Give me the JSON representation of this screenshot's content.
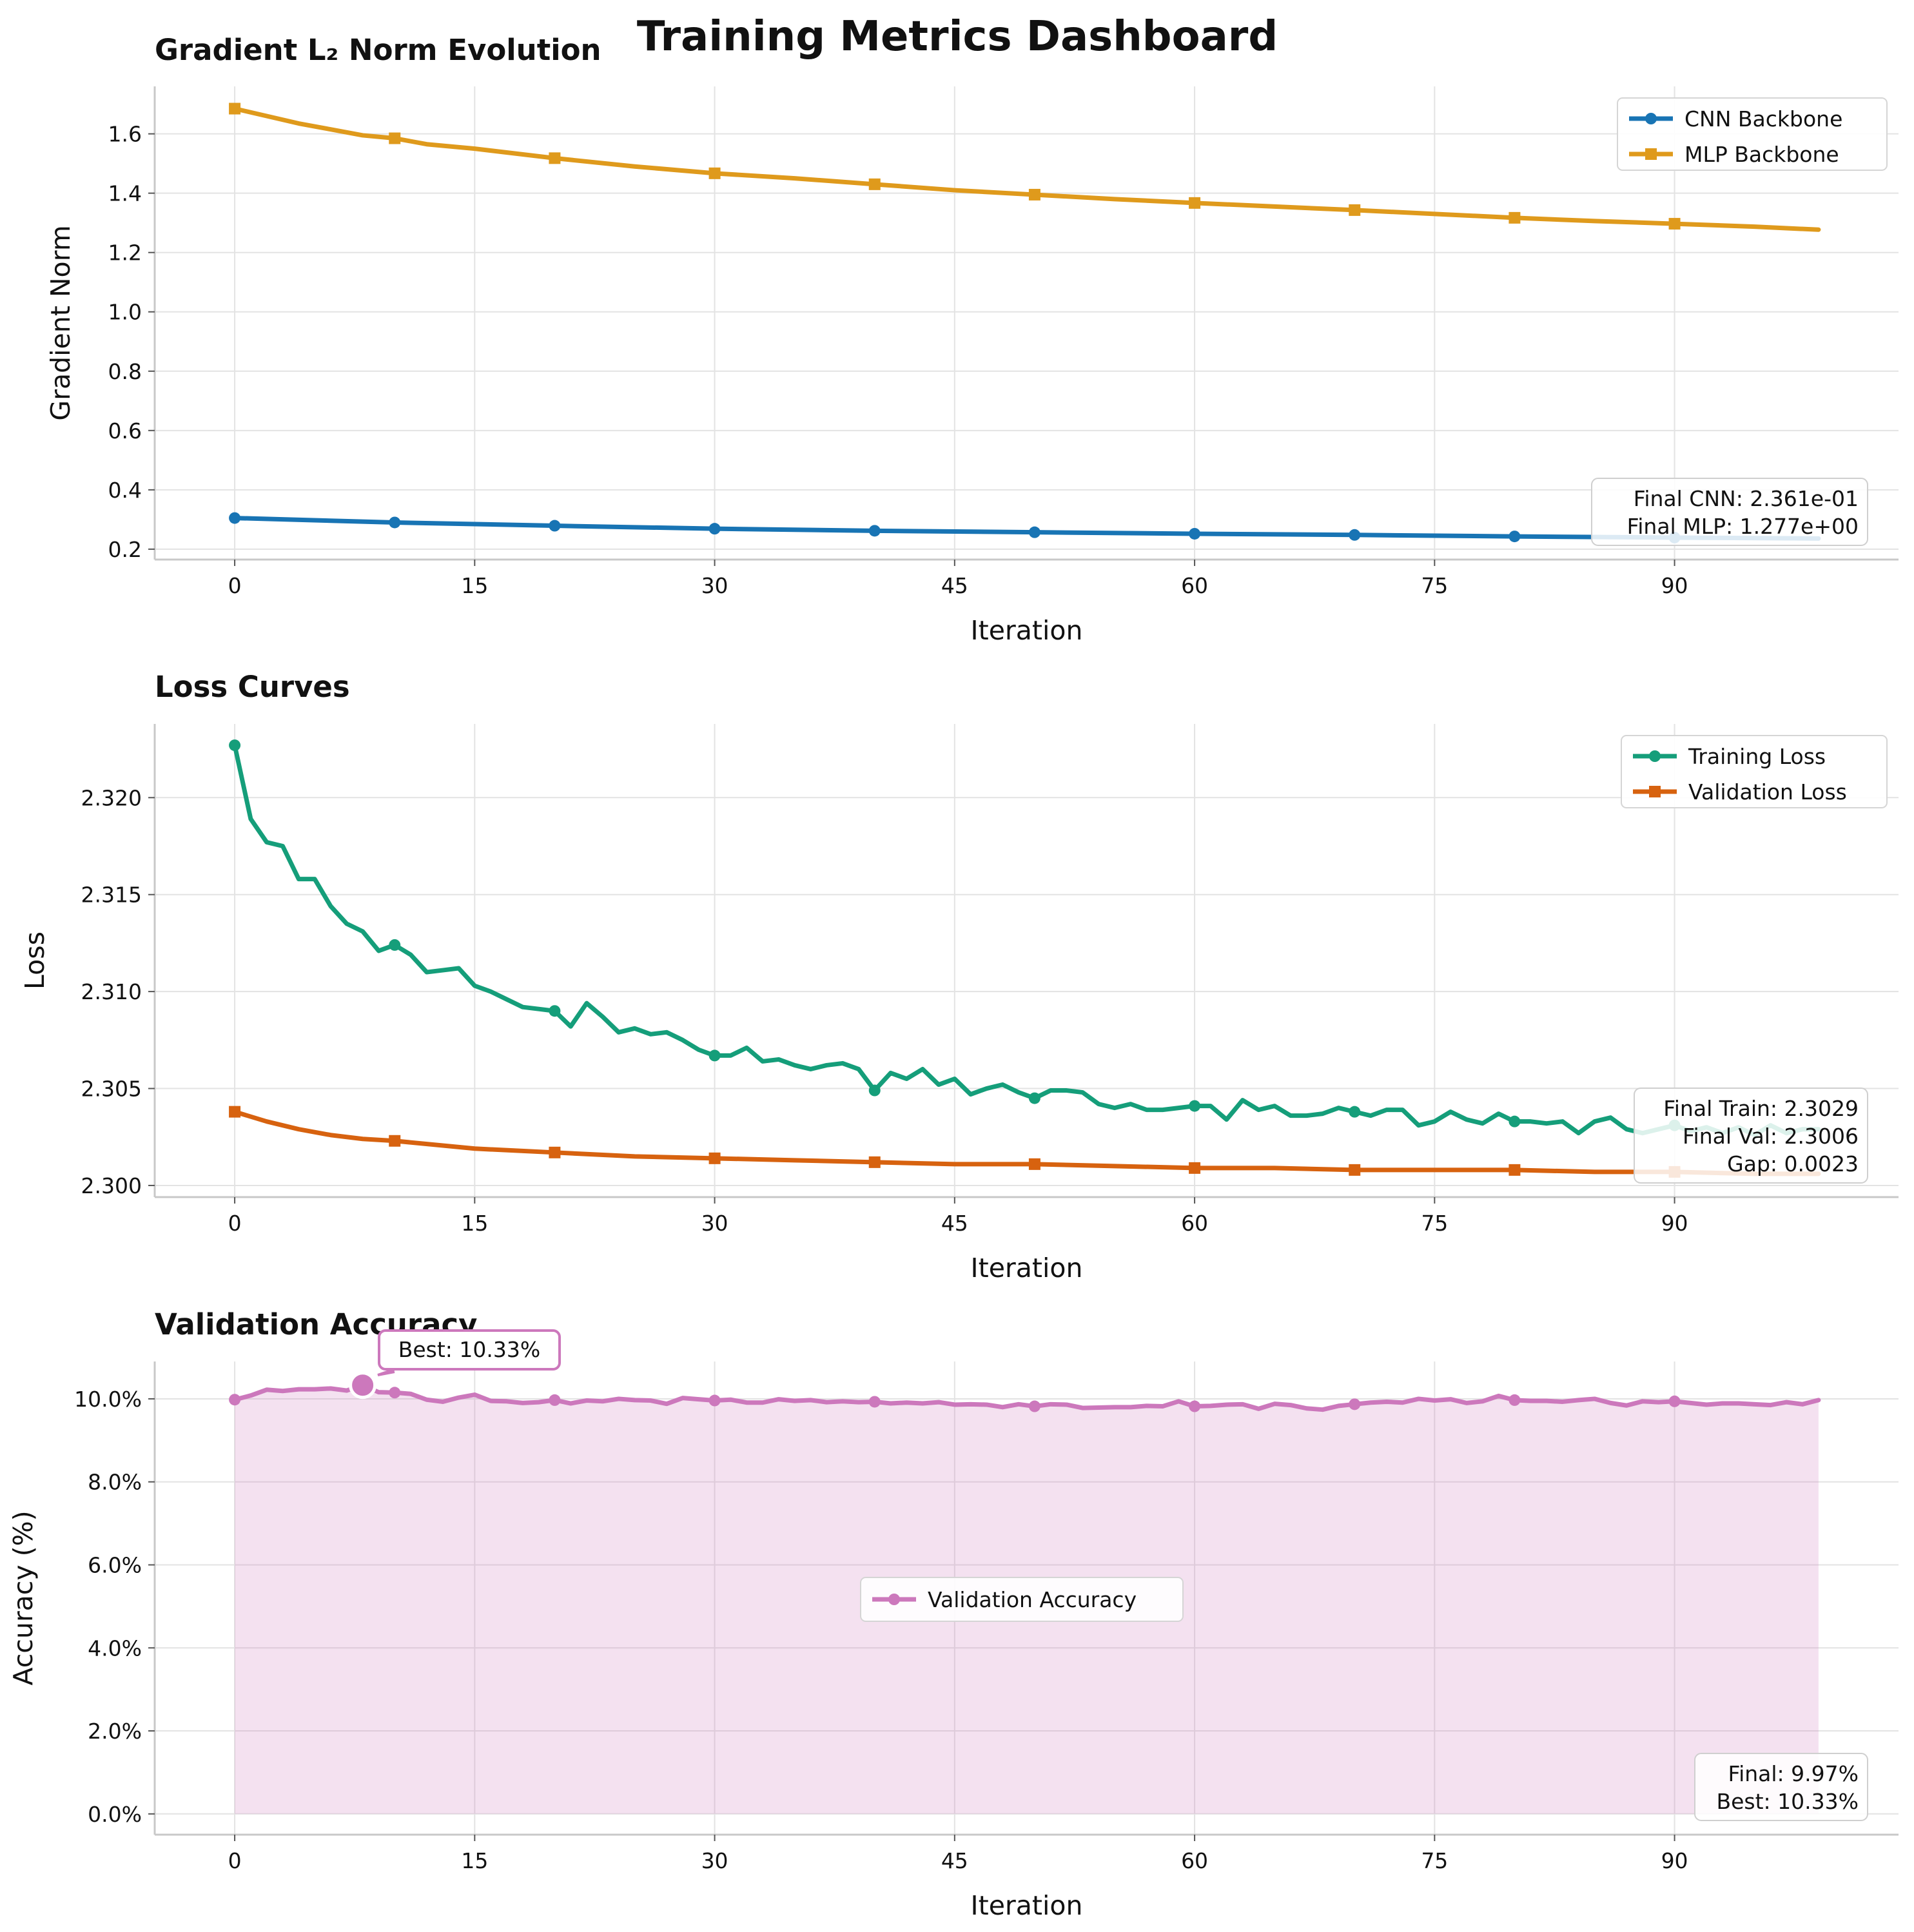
{
  "suptitle": "Training Metrics Dashboard",
  "colors": {
    "cnn": "#1874b4",
    "mlp": "#df9a1c",
    "train": "#159e7a",
    "val": "#d7620f",
    "acc": "#cc78bc",
    "grid": "#e3e3e3",
    "spine": "#c8c8c8",
    "text": "#111111"
  },
  "chart_data": [
    {
      "id": "grad",
      "type": "line",
      "title": "Gradient L₂ Norm Evolution",
      "xlabel": "Iteration",
      "ylabel": "Gradient Norm",
      "xlim": [
        -5,
        104
      ],
      "ylim": [
        0.165,
        1.76
      ],
      "xticks": [
        0,
        15,
        30,
        45,
        60,
        75,
        90
      ],
      "yticks": [
        0.2,
        0.4,
        0.6,
        0.8,
        1.0,
        1.2,
        1.4,
        1.6
      ],
      "ytick_labels": [
        "0.2",
        "0.4",
        "0.6",
        "0.8",
        "1.0",
        "1.2",
        "1.4",
        "1.6"
      ],
      "tick_labels_x": [
        "0",
        "15",
        "30",
        "45",
        "60",
        "75",
        "90"
      ],
      "grid": true,
      "legend": "upper right",
      "series": [
        {
          "name": "CNN Backbone",
          "color_key": "cnn",
          "marker": "circle",
          "x": [
            0,
            10,
            20,
            30,
            40,
            50,
            60,
            70,
            80,
            90,
            99
          ],
          "y": [
            0.305,
            0.29,
            0.279,
            0.269,
            0.262,
            0.257,
            0.252,
            0.248,
            0.243,
            0.239,
            0.236
          ]
        },
        {
          "name": "MLP Backbone",
          "color_key": "mlp",
          "marker": "square",
          "x": [
            0,
            2,
            4,
            6,
            8,
            10,
            12,
            15,
            20,
            25,
            30,
            35,
            40,
            45,
            50,
            55,
            60,
            65,
            70,
            75,
            80,
            85,
            90,
            95,
            99
          ],
          "y": [
            1.685,
            1.66,
            1.635,
            1.615,
            1.595,
            1.585,
            1.565,
            1.55,
            1.518,
            1.49,
            1.467,
            1.45,
            1.43,
            1.41,
            1.395,
            1.38,
            1.367,
            1.355,
            1.343,
            1.33,
            1.317,
            1.306,
            1.297,
            1.287,
            1.277
          ]
        }
      ],
      "marker_x": [
        0,
        10,
        20,
        30,
        40,
        50,
        60,
        70,
        80,
        90
      ],
      "annotation": [
        "Final CNN: 2.361e-01",
        "Final MLP: 1.277e+00"
      ]
    },
    {
      "id": "loss",
      "type": "line",
      "title": "Loss Curves",
      "xlabel": "Iteration",
      "ylabel": "Loss",
      "xlim": [
        -5,
        104
      ],
      "ylim": [
        2.2994,
        2.3238
      ],
      "xticks": [
        0,
        15,
        30,
        45,
        60,
        75,
        90
      ],
      "yticks": [
        2.3,
        2.305,
        2.31,
        2.315,
        2.32
      ],
      "ytick_labels": [
        "2.300",
        "2.305",
        "2.310",
        "2.315",
        "2.320"
      ],
      "tick_labels_x": [
        "0",
        "15",
        "30",
        "45",
        "60",
        "75",
        "90"
      ],
      "grid": true,
      "legend": "upper right",
      "series": [
        {
          "name": "Training Loss",
          "color_key": "train",
          "marker": "circle",
          "x": [
            0,
            1,
            2,
            3,
            4,
            5,
            6,
            7,
            8,
            9,
            10,
            11,
            12,
            13,
            14,
            15,
            16,
            17,
            18,
            19,
            20,
            21,
            22,
            23,
            24,
            25,
            26,
            27,
            28,
            29,
            30,
            31,
            32,
            33,
            34,
            35,
            36,
            37,
            38,
            39,
            40,
            41,
            42,
            43,
            44,
            45,
            46,
            47,
            48,
            49,
            50,
            51,
            52,
            53,
            54,
            55,
            56,
            57,
            58,
            59,
            60,
            61,
            62,
            63,
            64,
            65,
            66,
            67,
            68,
            69,
            70,
            71,
            72,
            73,
            74,
            75,
            76,
            77,
            78,
            79,
            80,
            81,
            82,
            83,
            84,
            85,
            86,
            87,
            88,
            89,
            90,
            91,
            92,
            93,
            94,
            95,
            96,
            97,
            98,
            99
          ],
          "y": [
            2.3227,
            2.3189,
            2.3177,
            2.3175,
            2.3158,
            2.3158,
            2.3144,
            2.3135,
            2.3131,
            2.3121,
            2.3124,
            2.3119,
            2.311,
            2.3111,
            2.3112,
            2.3103,
            2.31,
            2.3096,
            2.3092,
            2.3091,
            2.309,
            2.3082,
            2.3094,
            2.3087,
            2.3079,
            2.3081,
            2.3078,
            2.3079,
            2.3075,
            2.307,
            2.3067,
            2.3067,
            2.3071,
            2.3064,
            2.3065,
            2.3062,
            2.306,
            2.3062,
            2.3063,
            2.306,
            2.3049,
            2.3058,
            2.3055,
            2.306,
            2.3052,
            2.3055,
            2.3047,
            2.305,
            2.3052,
            2.3048,
            2.3045,
            2.3049,
            2.3049,
            2.3048,
            2.3042,
            2.304,
            2.3042,
            2.3039,
            2.3039,
            2.304,
            2.3041,
            2.3041,
            2.3034,
            2.3044,
            2.3039,
            2.3041,
            2.3036,
            2.3036,
            2.3037,
            2.304,
            2.3038,
            2.3036,
            2.3039,
            2.3039,
            2.3031,
            2.3033,
            2.3038,
            2.3034,
            2.3032,
            2.3037,
            2.3033,
            2.3033,
            2.3032,
            2.3033,
            2.3027,
            2.3033,
            2.3035,
            2.3029,
            2.3027,
            2.3029,
            2.3031,
            2.3028,
            2.303,
            2.3027,
            2.303,
            2.3026,
            2.3031,
            2.3027,
            2.3029,
            2.3029
          ]
        },
        {
          "name": "Validation Loss",
          "color_key": "val",
          "marker": "square",
          "x": [
            0,
            2,
            4,
            6,
            8,
            10,
            15,
            20,
            25,
            30,
            35,
            40,
            45,
            50,
            55,
            60,
            65,
            70,
            75,
            80,
            85,
            90,
            95,
            99
          ],
          "y": [
            2.3038,
            2.3033,
            2.3029,
            2.3026,
            2.3024,
            2.3023,
            2.3019,
            2.3017,
            2.3015,
            2.3014,
            2.3013,
            2.3012,
            2.3011,
            2.3011,
            2.301,
            2.3009,
            2.3009,
            2.3008,
            2.3008,
            2.3008,
            2.3007,
            2.3007,
            2.3006,
            2.3006
          ]
        }
      ],
      "marker_x": [
        0,
        10,
        20,
        30,
        40,
        50,
        60,
        70,
        80,
        90
      ],
      "annotation": [
        "Final Train: 2.3029",
        "Final Val: 2.3006",
        "Gap: 0.0023"
      ]
    },
    {
      "id": "acc",
      "type": "area",
      "title": "Validation Accuracy",
      "xlabel": "Iteration",
      "ylabel": "Accuracy (%)",
      "xlim": [
        -5,
        104
      ],
      "ylim": [
        -0.5,
        10.9
      ],
      "xticks": [
        0,
        15,
        30,
        45,
        60,
        75,
        90
      ],
      "yticks": [
        0,
        2,
        4,
        6,
        8,
        10
      ],
      "ytick_labels": [
        "0.0%",
        "2.0%",
        "4.0%",
        "6.0%",
        "8.0%",
        "10.0%"
      ],
      "tick_labels_x": [
        "0",
        "15",
        "30",
        "45",
        "60",
        "75",
        "90"
      ],
      "grid": true,
      "legend": "center",
      "series": [
        {
          "name": "Validation Accuracy",
          "color_key": "acc",
          "marker": "circle",
          "x": [
            0,
            1,
            2,
            3,
            4,
            5,
            6,
            7,
            8,
            9,
            10,
            11,
            12,
            13,
            14,
            15,
            16,
            17,
            18,
            19,
            20,
            21,
            22,
            23,
            24,
            25,
            26,
            27,
            28,
            29,
            30,
            31,
            32,
            33,
            34,
            35,
            36,
            37,
            38,
            39,
            40,
            41,
            42,
            43,
            44,
            45,
            46,
            47,
            48,
            49,
            50,
            51,
            52,
            53,
            54,
            55,
            56,
            57,
            58,
            59,
            60,
            61,
            62,
            63,
            64,
            65,
            66,
            67,
            68,
            69,
            70,
            71,
            72,
            73,
            74,
            75,
            76,
            77,
            78,
            79,
            80,
            81,
            82,
            83,
            84,
            85,
            86,
            87,
            88,
            89,
            90,
            91,
            92,
            93,
            94,
            95,
            96,
            97,
            98,
            99
          ],
          "y": [
            9.98,
            10.08,
            10.22,
            10.19,
            10.23,
            10.23,
            10.25,
            10.2,
            10.33,
            10.16,
            10.15,
            10.12,
            9.98,
            9.93,
            10.03,
            10.1,
            9.95,
            9.94,
            9.9,
            9.92,
            9.97,
            9.89,
            9.96,
            9.94,
            10.0,
            9.97,
            9.96,
            9.88,
            10.02,
            9.99,
            9.96,
            9.98,
            9.91,
            9.91,
            9.99,
            9.95,
            9.97,
            9.92,
            9.94,
            9.92,
            9.93,
            9.89,
            9.91,
            9.89,
            9.92,
            9.86,
            9.87,
            9.86,
            9.8,
            9.87,
            9.82,
            9.87,
            9.86,
            9.78,
            9.79,
            9.8,
            9.8,
            9.83,
            9.82,
            9.94,
            9.82,
            9.83,
            9.86,
            9.87,
            9.76,
            9.88,
            9.85,
            9.77,
            9.74,
            9.83,
            9.87,
            9.91,
            9.93,
            9.91,
            10.0,
            9.96,
            9.99,
            9.9,
            9.94,
            10.07,
            9.97,
            9.95,
            9.95,
            9.93,
            9.97,
            10.0,
            9.9,
            9.84,
            9.94,
            9.92,
            9.94,
            9.9,
            9.86,
            9.89,
            9.89,
            9.87,
            9.85,
            9.92,
            9.87,
            9.97
          ]
        }
      ],
      "marker_x": [
        0,
        10,
        20,
        30,
        40,
        50,
        60,
        70,
        80,
        90
      ],
      "best": {
        "x": 8,
        "y": 10.33,
        "label": "Best: 10.33%"
      },
      "annotation": [
        "Final: 9.97%",
        "Best: 10.33%"
      ]
    }
  ]
}
